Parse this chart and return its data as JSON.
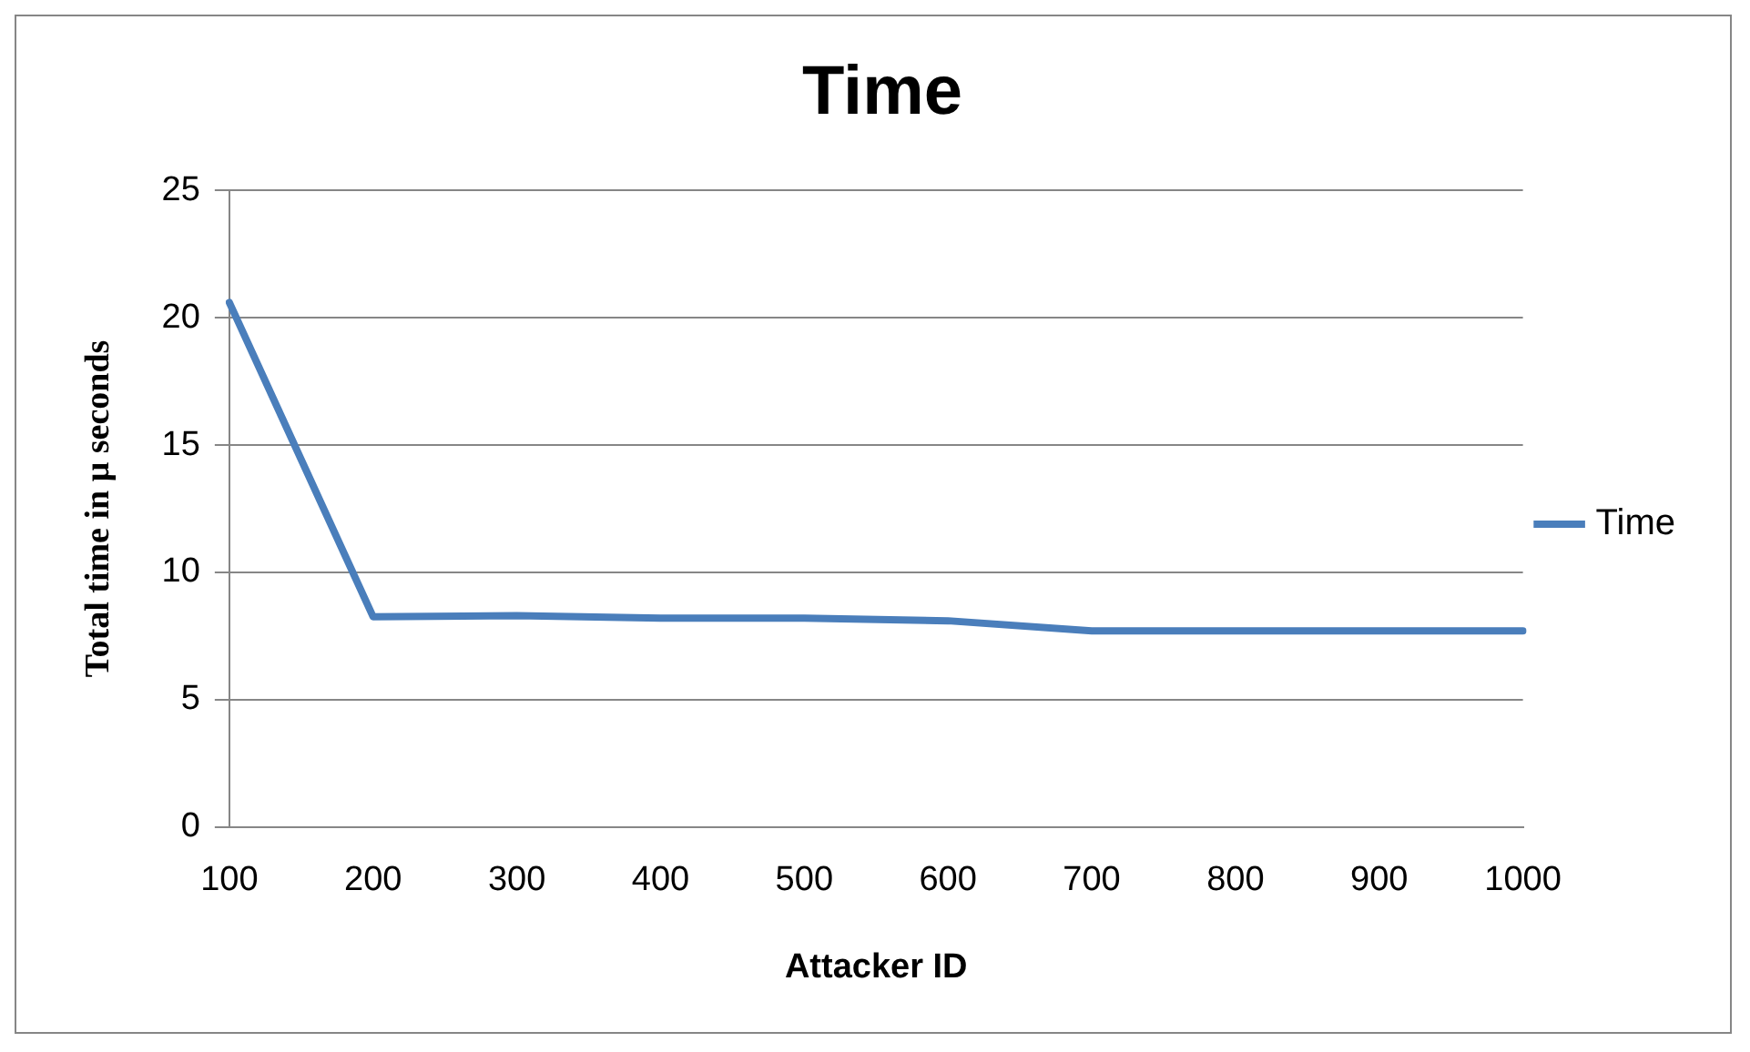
{
  "chart_data": {
    "type": "line",
    "title": "Time",
    "xlabel": "Attacker ID",
    "ylabel": "Total time in μ seconds",
    "categories": [
      "100",
      "200",
      "300",
      "400",
      "500",
      "600",
      "700",
      "800",
      "900",
      "1000"
    ],
    "series": [
      {
        "name": "Time",
        "color": "#4a7ebb",
        "values": [
          20.6,
          8.26,
          8.3,
          8.2,
          8.2,
          8.1,
          7.7,
          7.7,
          7.7,
          7.7
        ]
      }
    ],
    "ylim": [
      0,
      25
    ],
    "yticks": [
      0,
      5,
      10,
      15,
      20,
      25
    ],
    "grid": "y",
    "legend": "right",
    "marker": "none",
    "line_style": "solid"
  }
}
